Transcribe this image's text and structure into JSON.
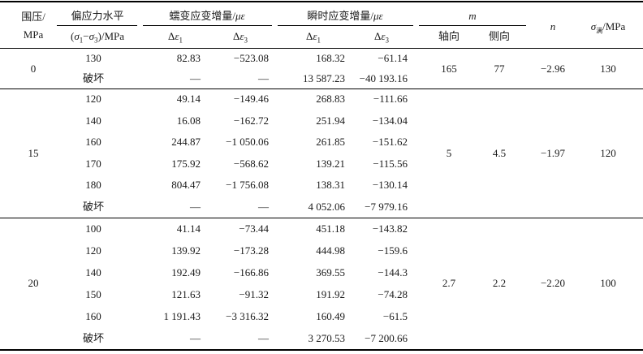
{
  "header": {
    "confining_l1": "围压/",
    "confining_l2": "MPa",
    "deviatoric_l1": "偏应力水平",
    "deviatoric_l2": "(σ1−σ3)/MPa",
    "creep_label": "蠕变应变增量/",
    "instant_label": "瞬时应变增量/",
    "strain_unit": "με",
    "d1": "Δε1",
    "d3": "Δε3",
    "m_label": "m",
    "m_axial": "轴向",
    "m_lateral": "侧向",
    "n_label": "n",
    "sigma_label": "σ",
    "sigma_sub": "满",
    "sigma_unit": "/MPa"
  },
  "groups": [
    {
      "confining": "0",
      "m_axial": "165",
      "m_lateral": "77",
      "n": "−2.96",
      "sigma": "130",
      "rows": [
        {
          "level": "130",
          "c1": "82.83",
          "c3": "−523.08",
          "i1": "168.32",
          "i3": "−61.14"
        },
        {
          "level": "破坏",
          "c1": "—",
          "c3": "—",
          "i1": "13 587.23",
          "i3": "−40 193.16"
        }
      ]
    },
    {
      "confining": "15",
      "m_axial": "5",
      "m_lateral": "4.5",
      "n": "−1.97",
      "sigma": "120",
      "rows": [
        {
          "level": "120",
          "c1": "49.14",
          "c3": "−149.46",
          "i1": "268.83",
          "i3": "−111.66"
        },
        {
          "level": "140",
          "c1": "16.08",
          "c3": "−162.72",
          "i1": "251.94",
          "i3": "−134.04"
        },
        {
          "level": "160",
          "c1": "244.87",
          "c3": "−1 050.06",
          "i1": "261.85",
          "i3": "−151.62"
        },
        {
          "level": "170",
          "c1": "175.92",
          "c3": "−568.62",
          "i1": "139.21",
          "i3": "−115.56"
        },
        {
          "level": "180",
          "c1": "804.47",
          "c3": "−1 756.08",
          "i1": "138.31",
          "i3": "−130.14"
        },
        {
          "level": "破坏",
          "c1": "—",
          "c3": "—",
          "i1": "4 052.06",
          "i3": "−7 979.16"
        }
      ]
    },
    {
      "confining": "20",
      "m_axial": "2.7",
      "m_lateral": "2.2",
      "n": "−2.20",
      "sigma": "100",
      "rows": [
        {
          "level": "100",
          "c1": "41.14",
          "c3": "−73.44",
          "i1": "451.18",
          "i3": "−143.82"
        },
        {
          "level": "120",
          "c1": "139.92",
          "c3": "−173.28",
          "i1": "444.98",
          "i3": "−159.6"
        },
        {
          "level": "140",
          "c1": "192.49",
          "c3": "−166.86",
          "i1": "369.55",
          "i3": "−144.3"
        },
        {
          "level": "150",
          "c1": "121.63",
          "c3": "−91.32",
          "i1": "191.92",
          "i3": "−74.28"
        },
        {
          "level": "160",
          "c1": "1 191.43",
          "c3": "−3 316.32",
          "i1": "160.49",
          "i3": "−61.5"
        },
        {
          "level": "破坏",
          "c1": "—",
          "c3": "—",
          "i1": "3 270.53",
          "i3": "−7 200.66"
        }
      ]
    }
  ]
}
